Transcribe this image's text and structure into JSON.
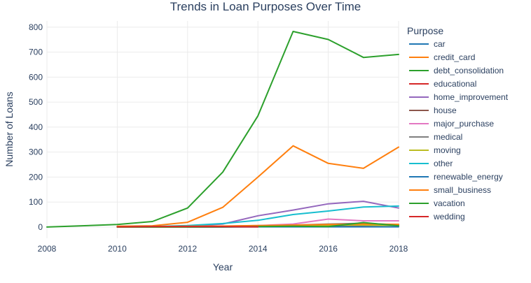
{
  "chart_data": {
    "type": "line",
    "title": "Trends in Loan Purposes Over Time",
    "xlabel": "Year",
    "ylabel": "Number of Loans",
    "xlim": [
      2008,
      2018
    ],
    "ylim": [
      -45,
      825
    ],
    "xticks": [
      2008,
      2010,
      2012,
      2014,
      2016,
      2018
    ],
    "yticks": [
      0,
      100,
      200,
      300,
      400,
      500,
      600,
      700,
      800
    ],
    "grid": true,
    "legend_title": "Purpose",
    "legend_position": "right",
    "series": [
      {
        "name": "car",
        "color": "#1f77b4",
        "x": [
          2010,
          2011,
          2012,
          2013,
          2014,
          2015,
          2016,
          2017,
          2018
        ],
        "y": [
          1,
          1,
          1,
          2,
          3,
          4,
          5,
          6,
          7
        ]
      },
      {
        "name": "credit_card",
        "color": "#ff7f0e",
        "x": [
          2010,
          2011,
          2012,
          2013,
          2014,
          2015,
          2016,
          2017,
          2018
        ],
        "y": [
          3,
          5,
          19,
          79,
          200,
          325,
          255,
          235,
          320
        ]
      },
      {
        "name": "debt_consolidation",
        "color": "#2ca02c",
        "x": [
          2008,
          2009,
          2010,
          2011,
          2012,
          2013,
          2014,
          2015,
          2016,
          2017,
          2018
        ],
        "y": [
          0,
          5,
          10,
          22,
          76,
          220,
          445,
          783,
          751,
          679,
          691
        ]
      },
      {
        "name": "educational",
        "color": "#d62728",
        "x": [
          2010,
          2011,
          2012,
          2013,
          2014
        ],
        "y": [
          1,
          0,
          1,
          1,
          1
        ]
      },
      {
        "name": "home_improvement",
        "color": "#9467bd",
        "x": [
          2010,
          2011,
          2012,
          2013,
          2014,
          2015,
          2016,
          2017,
          2018
        ],
        "y": [
          1,
          2,
          4,
          12,
          45,
          68,
          93,
          103,
          76
        ]
      },
      {
        "name": "house",
        "color": "#8c564b",
        "x": [
          2010,
          2011,
          2012,
          2013,
          2014,
          2015,
          2016,
          2017,
          2018
        ],
        "y": [
          0,
          0,
          1,
          1,
          2,
          3,
          5,
          6,
          7
        ]
      },
      {
        "name": "major_purchase",
        "color": "#e377c2",
        "x": [
          2010,
          2011,
          2012,
          2013,
          2014,
          2015,
          2016,
          2017,
          2018
        ],
        "y": [
          1,
          1,
          2,
          3,
          6,
          12,
          32,
          25,
          25
        ]
      },
      {
        "name": "medical",
        "color": "#7f7f7f",
        "x": [
          2010,
          2011,
          2012,
          2013,
          2014,
          2015,
          2016,
          2017,
          2018
        ],
        "y": [
          0,
          1,
          1,
          2,
          4,
          8,
          12,
          15,
          9
        ]
      },
      {
        "name": "moving",
        "color": "#bcbd22",
        "x": [
          2010,
          2011,
          2012,
          2013,
          2014,
          2015,
          2016,
          2017,
          2018
        ],
        "y": [
          0,
          1,
          1,
          2,
          3,
          5,
          7,
          8,
          6
        ]
      },
      {
        "name": "other",
        "color": "#17becf",
        "x": [
          2010,
          2011,
          2012,
          2013,
          2014,
          2015,
          2016,
          2017,
          2018
        ],
        "y": [
          1,
          2,
          6,
          14,
          27,
          50,
          64,
          80,
          84
        ]
      },
      {
        "name": "renewable_energy",
        "color": "#1f77b4",
        "x": [
          2012,
          2013,
          2014,
          2015,
          2016,
          2017,
          2018
        ],
        "y": [
          0,
          0,
          1,
          1,
          1,
          1,
          1
        ]
      },
      {
        "name": "small_business",
        "color": "#ff7f0e",
        "x": [
          2010,
          2011,
          2012,
          2013,
          2014,
          2015,
          2016,
          2017,
          2018
        ],
        "y": [
          1,
          2,
          3,
          4,
          6,
          8,
          10,
          12,
          11
        ]
      },
      {
        "name": "vacation",
        "color": "#2ca02c",
        "x": [
          2010,
          2011,
          2012,
          2013,
          2014,
          2015,
          2016,
          2017,
          2018
        ],
        "y": [
          0,
          0,
          0,
          1,
          2,
          3,
          2,
          18,
          5
        ]
      },
      {
        "name": "wedding",
        "color": "#d62728",
        "x": [
          2010,
          2011,
          2012,
          2013,
          2014
        ],
        "y": [
          1,
          2,
          2,
          2,
          1
        ]
      }
    ]
  }
}
